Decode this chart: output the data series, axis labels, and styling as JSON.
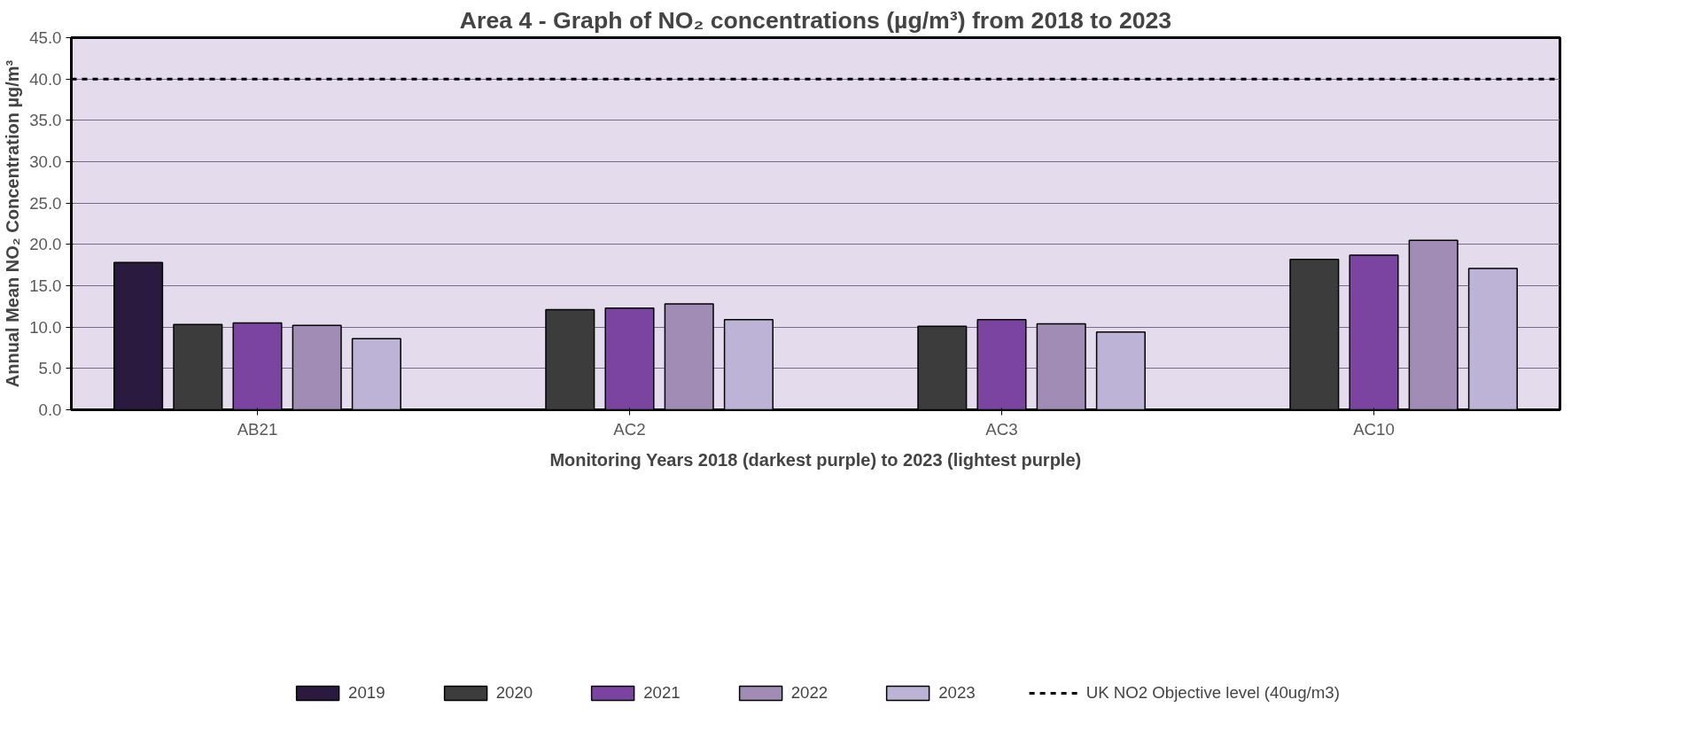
{
  "chart_data": {
    "type": "bar",
    "title": "Area 4 - Graph of NO₂ concentrations (µg/m³) from 2018 to 2023",
    "xlabel": "Monitoring Years 2018 (darkest purple) to 2023 (lightest purple)",
    "ylabel": "Annual Mean NO₂ Concentration µg/m³",
    "categories": [
      "AB21",
      "AC2",
      "AC3",
      "AC10"
    ],
    "series": [
      {
        "name": "2019",
        "color": "#2a1a40",
        "values": [
          17.8,
          null,
          null,
          null
        ]
      },
      {
        "name": "2020",
        "color": "#3c3c3c",
        "values": [
          10.3,
          12.1,
          10.1,
          18.2
        ]
      },
      {
        "name": "2021",
        "color": "#7b44a0",
        "values": [
          10.5,
          12.3,
          10.9,
          18.7
        ]
      },
      {
        "name": "2022",
        "color": "#a08cb4",
        "values": [
          10.2,
          12.8,
          10.4,
          20.5
        ]
      },
      {
        "name": "2023",
        "color": "#bdb3d6",
        "values": [
          8.6,
          10.9,
          9.4,
          17.1
        ]
      }
    ],
    "ref_lines": [
      {
        "axis": "y",
        "value": 40,
        "label": "UK NO2 Objective level (40ug/m3)",
        "color": "#000000",
        "line_style": "dashed"
      }
    ],
    "ylim": [
      0,
      45
    ],
    "yticks": [
      {
        "value": 0,
        "label": "0.0"
      },
      {
        "value": 5,
        "label": "5.0"
      },
      {
        "value": 10,
        "label": "10.0"
      },
      {
        "value": 15,
        "label": "15.0"
      },
      {
        "value": 20,
        "label": "20.0"
      },
      {
        "value": 25,
        "label": "25.0"
      },
      {
        "value": 30,
        "label": "30.0"
      },
      {
        "value": 35,
        "label": "35.0"
      },
      {
        "value": 40,
        "label": "40.0"
      },
      {
        "value": 45,
        "label": "45.0"
      }
    ],
    "grid": "y",
    "legend": "bottom"
  }
}
